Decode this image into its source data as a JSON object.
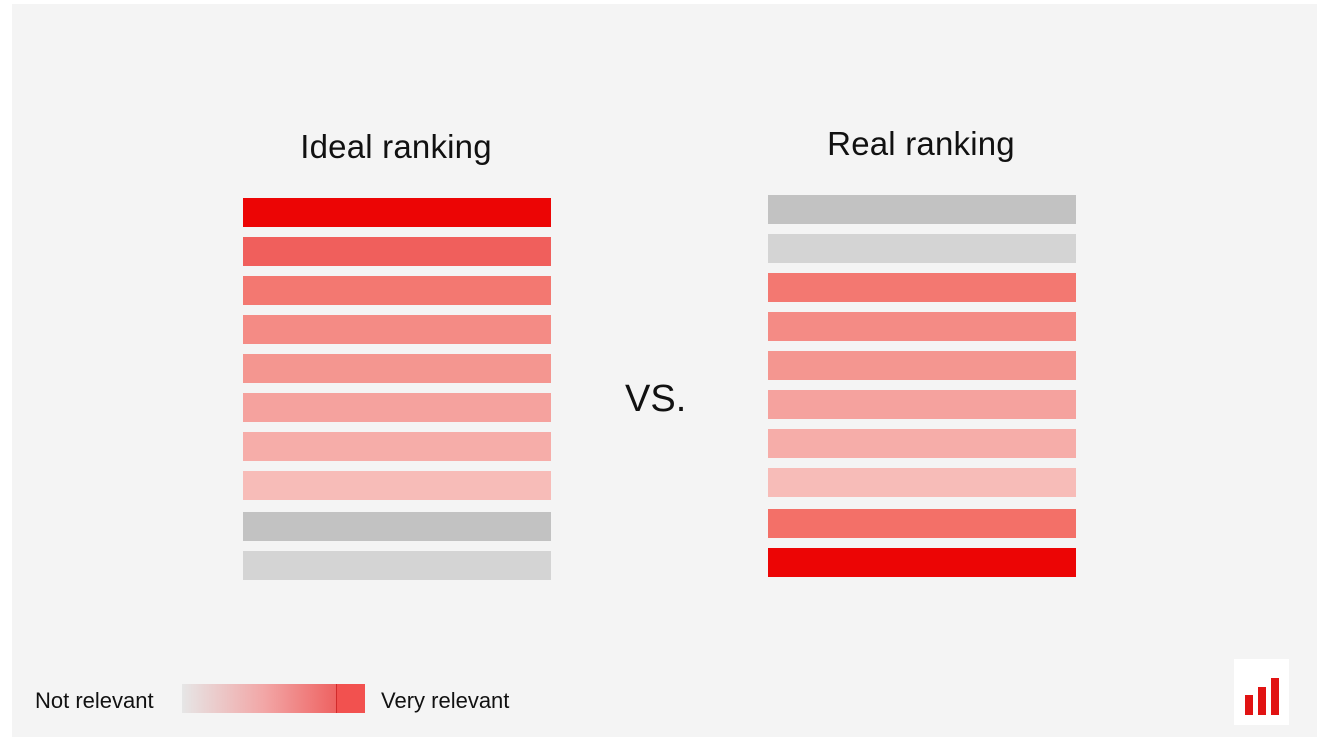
{
  "ideal": {
    "title": "Ideal ranking",
    "bars": [
      {
        "color": "#ec0505"
      },
      {
        "color": "#f05f5c"
      },
      {
        "color": "#f37871"
      },
      {
        "color": "#f48b85"
      },
      {
        "color": "#f49690"
      },
      {
        "color": "#f5a29e"
      },
      {
        "color": "#f6ada9"
      },
      {
        "color": "#f7bcb8"
      },
      {
        "color": "#c2c2c2"
      },
      {
        "color": "#d4d4d4"
      }
    ]
  },
  "real": {
    "title": "Real ranking",
    "bars": [
      {
        "color": "#c2c2c2"
      },
      {
        "color": "#d4d4d4"
      },
      {
        "color": "#f37871"
      },
      {
        "color": "#f48b85"
      },
      {
        "color": "#f49690"
      },
      {
        "color": "#f5a29e"
      },
      {
        "color": "#f6ada9"
      },
      {
        "color": "#f7bcb8"
      },
      {
        "color": "#f37068"
      },
      {
        "color": "#ec0505"
      }
    ]
  },
  "vs": "VS.",
  "legend": {
    "low_label": "Not relevant",
    "high_label": "Very relevant",
    "end_color": "#f2514f"
  },
  "logo": {
    "icon": "bar-chart-logo-icon",
    "color": "#e11313"
  }
}
